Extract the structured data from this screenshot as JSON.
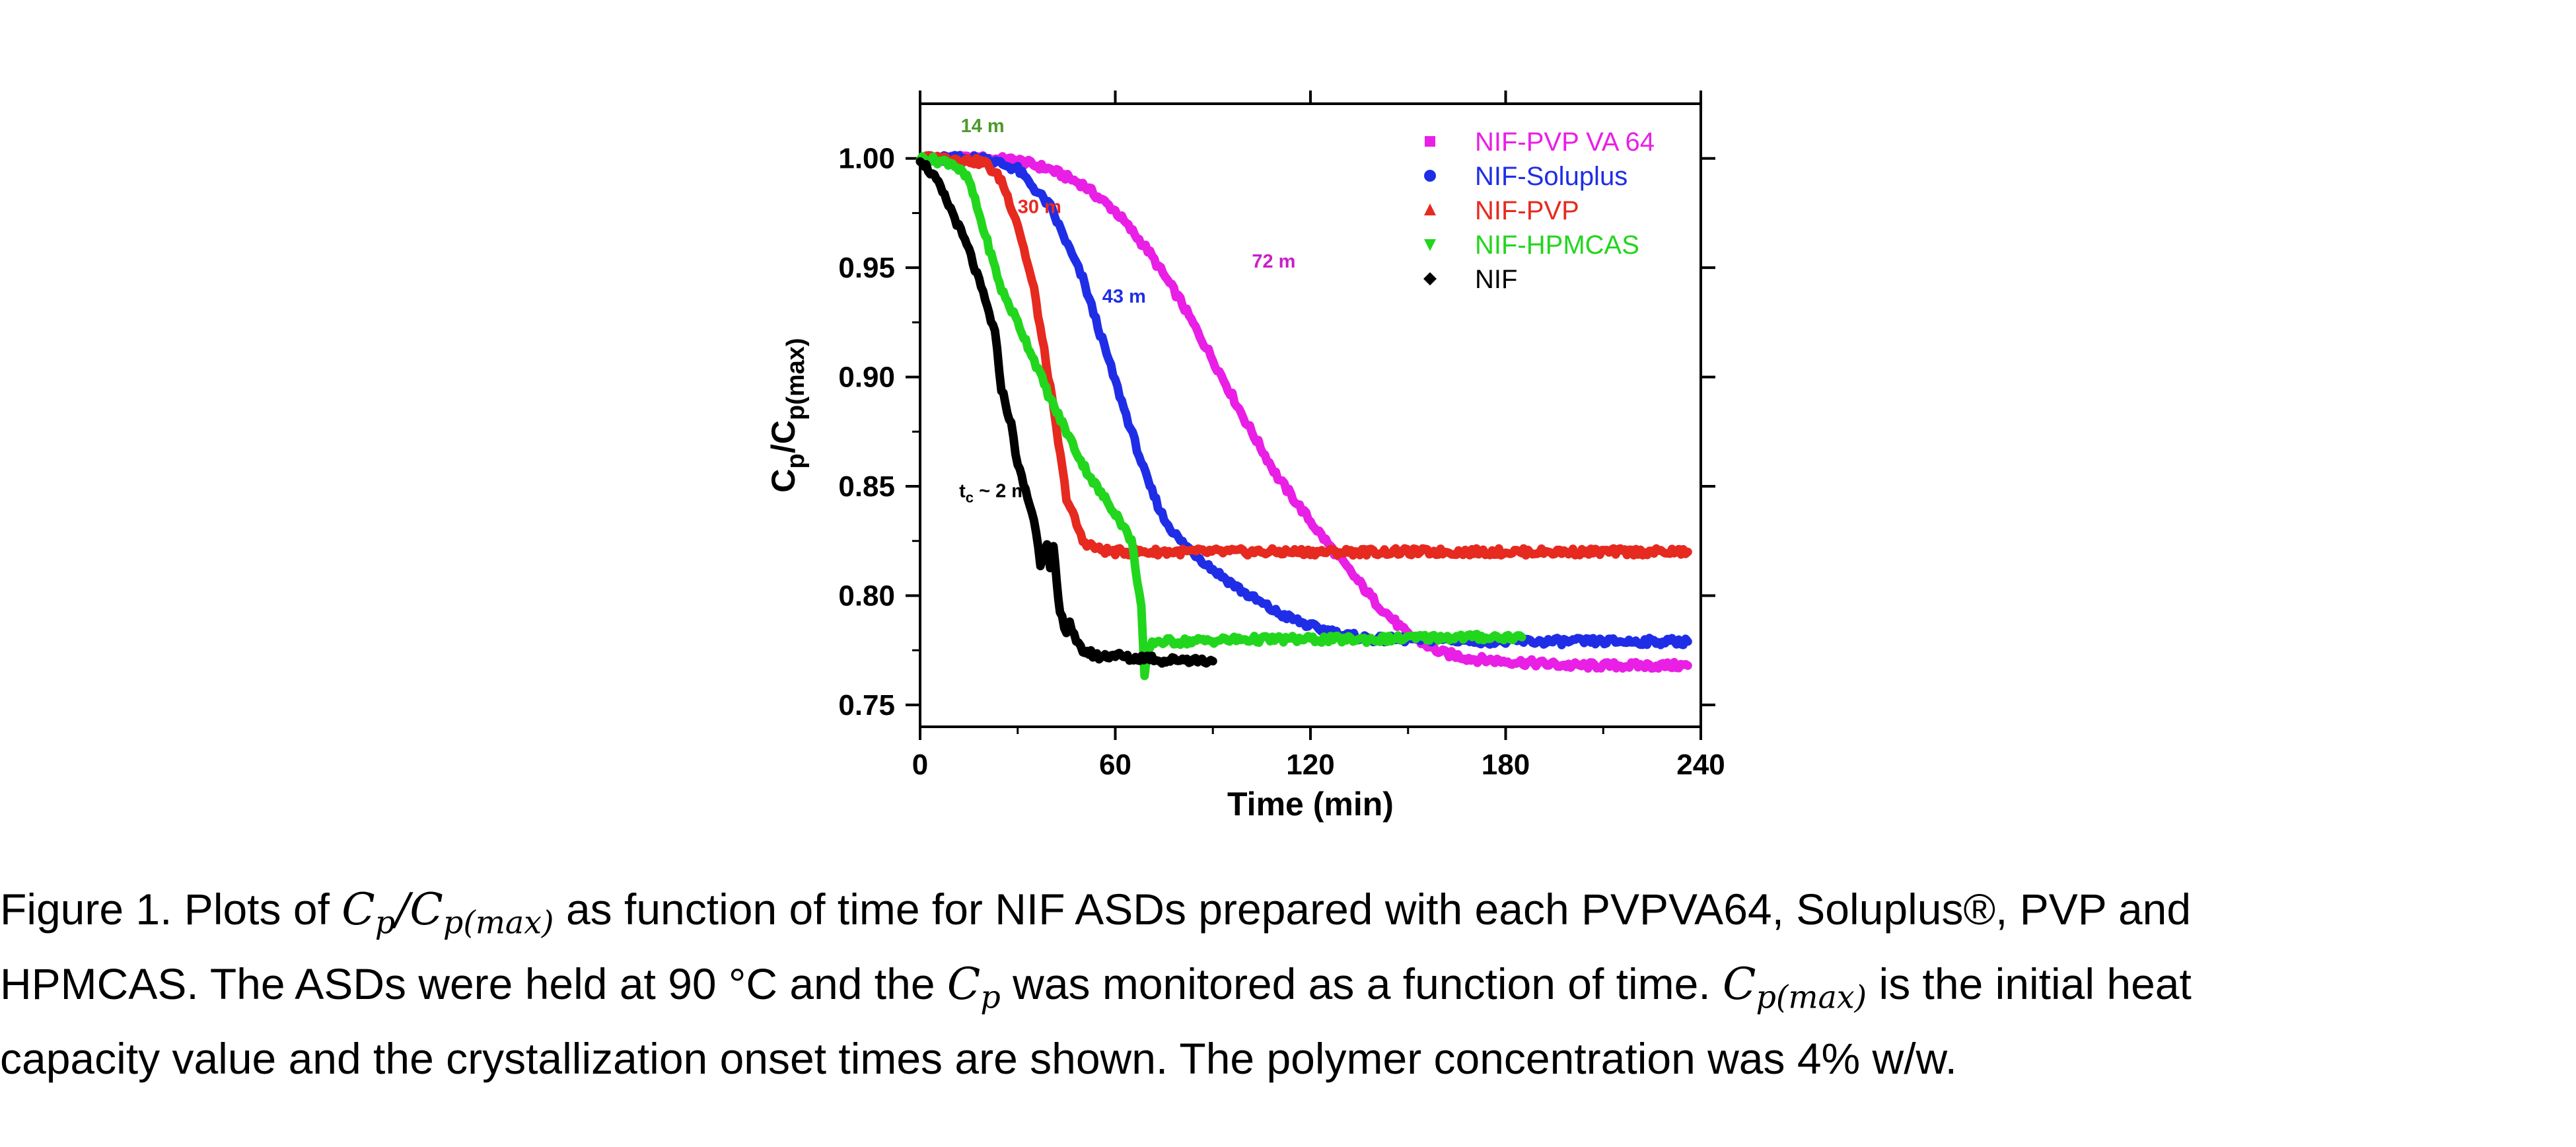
{
  "chart_data": {
    "type": "line",
    "xlabel": "Time (min)",
    "ylabel_main": "C",
    "ylabel_sub1": "p",
    "ylabel_slash": "/C",
    "ylabel_sub2": "p(max)",
    "xlim": [
      0,
      240
    ],
    "ylim": [
      0.74,
      1.025
    ],
    "xticks": [
      0,
      60,
      120,
      180,
      240
    ],
    "yticks": [
      0.75,
      0.8,
      0.85,
      0.9,
      0.95,
      1.0
    ],
    "xtick_labels": [
      "0",
      "60",
      "120",
      "180",
      "240"
    ],
    "ytick_labels": [
      "0.75",
      "0.80",
      "0.85",
      "0.90",
      "0.95",
      "1.00"
    ],
    "legend_position": "top-right",
    "grid": false,
    "series": [
      {
        "name": "NIF-PVP VA 64",
        "color": "#e91fe6",
        "marker": "square",
        "points": [
          [
            0,
            1.0
          ],
          [
            20,
            1.0
          ],
          [
            30,
            0.999
          ],
          [
            40,
            0.995
          ],
          [
            50,
            0.988
          ],
          [
            60,
            0.976
          ],
          [
            70,
            0.958
          ],
          [
            80,
            0.935
          ],
          [
            90,
            0.908
          ],
          [
            100,
            0.88
          ],
          [
            110,
            0.854
          ],
          [
            120,
            0.834
          ],
          [
            130,
            0.815
          ],
          [
            140,
            0.797
          ],
          [
            150,
            0.782
          ],
          [
            160,
            0.774
          ],
          [
            170,
            0.771
          ],
          [
            180,
            0.77
          ],
          [
            190,
            0.769
          ],
          [
            200,
            0.768
          ],
          [
            210,
            0.768
          ],
          [
            220,
            0.768
          ],
          [
            236,
            0.768
          ]
        ]
      },
      {
        "name": "NIF-Soluplus",
        "color": "#1f2ee6",
        "marker": "circle",
        "points": [
          [
            0,
            1.0
          ],
          [
            10,
            1.0
          ],
          [
            20,
            1.0
          ],
          [
            30,
            0.995
          ],
          [
            40,
            0.978
          ],
          [
            50,
            0.945
          ],
          [
            60,
            0.898
          ],
          [
            70,
            0.852
          ],
          [
            75,
            0.835
          ],
          [
            80,
            0.825
          ],
          [
            90,
            0.812
          ],
          [
            100,
            0.801
          ],
          [
            110,
            0.792
          ],
          [
            120,
            0.786
          ],
          [
            130,
            0.782
          ],
          [
            140,
            0.78
          ],
          [
            160,
            0.78
          ],
          [
            180,
            0.779
          ],
          [
            200,
            0.779
          ],
          [
            220,
            0.779
          ],
          [
            236,
            0.779
          ]
        ]
      },
      {
        "name": "NIF-PVP",
        "color": "#e62a1f",
        "marker": "triangle-up",
        "points": [
          [
            0,
            1.0
          ],
          [
            10,
            1.0
          ],
          [
            20,
            0.998
          ],
          [
            25,
            0.99
          ],
          [
            30,
            0.97
          ],
          [
            35,
            0.94
          ],
          [
            40,
            0.895
          ],
          [
            45,
            0.845
          ],
          [
            50,
            0.825
          ],
          [
            55,
            0.821
          ],
          [
            60,
            0.82
          ],
          [
            80,
            0.82
          ],
          [
            120,
            0.82
          ],
          [
            160,
            0.82
          ],
          [
            200,
            0.82
          ],
          [
            236,
            0.82
          ]
        ]
      },
      {
        "name": "NIF-HPMCAS",
        "color": "#22d61e",
        "marker": "triangle-down",
        "points": [
          [
            0,
            1.0
          ],
          [
            10,
            0.998
          ],
          [
            15,
            0.99
          ],
          [
            20,
            0.965
          ],
          [
            25,
            0.94
          ],
          [
            30,
            0.925
          ],
          [
            35,
            0.908
          ],
          [
            40,
            0.89
          ],
          [
            45,
            0.875
          ],
          [
            50,
            0.86
          ],
          [
            55,
            0.848
          ],
          [
            60,
            0.838
          ],
          [
            65,
            0.825
          ],
          [
            68,
            0.795
          ],
          [
            69,
            0.762
          ],
          [
            70,
            0.775
          ],
          [
            72,
            0.779
          ],
          [
            80,
            0.779
          ],
          [
            100,
            0.78
          ],
          [
            120,
            0.78
          ],
          [
            140,
            0.78
          ],
          [
            160,
            0.781
          ],
          [
            185,
            0.781
          ]
        ]
      },
      {
        "name": "NIF",
        "color": "#000000",
        "marker": "diamond",
        "points": [
          [
            0,
            1.0
          ],
          [
            5,
            0.99
          ],
          [
            10,
            0.975
          ],
          [
            15,
            0.958
          ],
          [
            20,
            0.935
          ],
          [
            23,
            0.92
          ],
          [
            25,
            0.895
          ],
          [
            28,
            0.878
          ],
          [
            30,
            0.86
          ],
          [
            33,
            0.845
          ],
          [
            35,
            0.835
          ],
          [
            37,
            0.815
          ],
          [
            39,
            0.825
          ],
          [
            40,
            0.812
          ],
          [
            41,
            0.822
          ],
          [
            42,
            0.805
          ],
          [
            43,
            0.792
          ],
          [
            45,
            0.784
          ],
          [
            46,
            0.788
          ],
          [
            48,
            0.778
          ],
          [
            50,
            0.775
          ],
          [
            55,
            0.772
          ],
          [
            60,
            0.773
          ],
          [
            65,
            0.771
          ],
          [
            70,
            0.772
          ],
          [
            75,
            0.77
          ],
          [
            80,
            0.771
          ],
          [
            90,
            0.77
          ]
        ]
      }
    ],
    "annotations": [
      {
        "text": "14 m",
        "x": 12.5,
        "y": 1.012,
        "color": "#4d9a2d"
      },
      {
        "text": "30 m",
        "x": 30,
        "y": 0.975,
        "color": "#e62a1f"
      },
      {
        "text": "43 m",
        "x": 56,
        "y": 0.934,
        "color": "#1f2ee6"
      },
      {
        "text": "72 m",
        "x": 102,
        "y": 0.95,
        "color": "#c81ec8"
      },
      {
        "text": "t",
        "x": 12,
        "y": 0.845,
        "color": "#000000",
        "subscript": "c",
        "rest": " ~ 2 m"
      }
    ]
  },
  "caption": {
    "line1_a": "Figure 1. Plots of ",
    "line1_math_a1": "C",
    "line1_math_a1_sub": "p",
    "line1_math_a2": "/C",
    "line1_math_a2_sub": "p(max)",
    "line1_b": " as function of time for NIF ASDs prepared with each PVPVA64, Soluplus®, PVP and",
    "line2_a": "HPMCAS. The ASDs were held at 90 °C and the ",
    "line2_math": "C",
    "line2_math_sub": "p",
    "line2_b": " was monitored as a function of time.  ",
    "line2_math2": "C",
    "line2_math2_sub": "p(max)",
    "line2_c": " is the initial heat",
    "line3": "capacity value and the crystallization onset times are shown. The polymer concentration was 4% w/w."
  }
}
